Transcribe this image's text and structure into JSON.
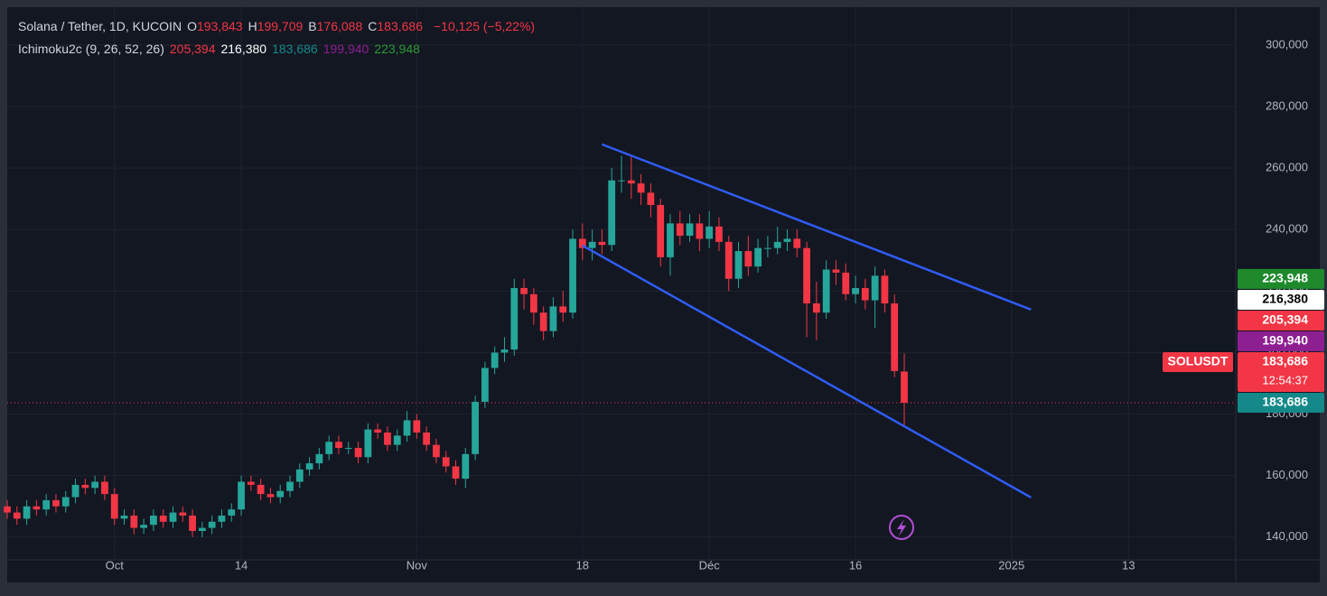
{
  "chart_data": {
    "type": "candlestick",
    "header": {
      "title": "Solana / Tether, 1D, KUCOIN",
      "ohlc": [
        {
          "key": "O",
          "value": "193,843"
        },
        {
          "key": "H",
          "value": "199,709"
        },
        {
          "key": "B",
          "value": "176,088"
        },
        {
          "key": "C",
          "value": "183,686"
        }
      ],
      "change": "−10,125 (−5,22%)",
      "indicator": "Ichimoku2c (9, 26, 52, 26)",
      "indicator_values": [
        {
          "text": "205,394",
          "color": "#f23645"
        },
        {
          "text": "216,380",
          "color": "#ffffff"
        },
        {
          "text": "183,686",
          "color": "#15898a"
        },
        {
          "text": "199,940",
          "color": "#8e1f91"
        },
        {
          "text": "223,948",
          "color": "#2b9a33"
        }
      ]
    },
    "up_color": "#26a69a",
    "down_color": "#f23645",
    "x": [
      "2024-09-20",
      "2024-09-21",
      "2024-09-22",
      "2024-09-23",
      "2024-09-24",
      "2024-09-25",
      "2024-09-26",
      "2024-09-27",
      "2024-09-28",
      "2024-09-29",
      "2024-09-30",
      "2024-10-01",
      "2024-10-02",
      "2024-10-03",
      "2024-10-04",
      "2024-10-05",
      "2024-10-06",
      "2024-10-07",
      "2024-10-08",
      "2024-10-09",
      "2024-10-10",
      "2024-10-11",
      "2024-10-12",
      "2024-10-13",
      "2024-10-14",
      "2024-10-15",
      "2024-10-16",
      "2024-10-17",
      "2024-10-18",
      "2024-10-19",
      "2024-10-20",
      "2024-10-21",
      "2024-10-22",
      "2024-10-23",
      "2024-10-24",
      "2024-10-25",
      "2024-10-26",
      "2024-10-27",
      "2024-10-28",
      "2024-10-29",
      "2024-10-30",
      "2024-10-31",
      "2024-11-01",
      "2024-11-02",
      "2024-11-03",
      "2024-11-04",
      "2024-11-05",
      "2024-11-06",
      "2024-11-07",
      "2024-11-08",
      "2024-11-09",
      "2024-11-10",
      "2024-11-11",
      "2024-11-12",
      "2024-11-13",
      "2024-11-14",
      "2024-11-15",
      "2024-11-16",
      "2024-11-17",
      "2024-11-18",
      "2024-11-19",
      "2024-11-20",
      "2024-11-21",
      "2024-11-22",
      "2024-11-23",
      "2024-11-24",
      "2024-11-25",
      "2024-11-26",
      "2024-11-27",
      "2024-11-28",
      "2024-11-29",
      "2024-11-30",
      "2024-12-01",
      "2024-12-02",
      "2024-12-03",
      "2024-12-04",
      "2024-12-05",
      "2024-12-06",
      "2024-12-07",
      "2024-12-08",
      "2024-12-09",
      "2024-12-10",
      "2024-12-11",
      "2024-12-12",
      "2024-12-13",
      "2024-12-14",
      "2024-12-15",
      "2024-12-16",
      "2024-12-17",
      "2024-12-18",
      "2024-12-19",
      "2024-12-20",
      "2024-12-21"
    ],
    "series": [
      {
        "name": "SOLUSDT",
        "open": [
          150000,
          148000,
          146000,
          150000,
          149000,
          152000,
          150000,
          153000,
          157000,
          156000,
          158000,
          154000,
          146000,
          147000,
          143000,
          144000,
          147000,
          145000,
          148000,
          147000,
          142000,
          143000,
          145000,
          147000,
          149000,
          158000,
          157000,
          154000,
          153000,
          155000,
          158000,
          162000,
          164000,
          167000,
          171000,
          169000,
          169000,
          166000,
          175000,
          174000,
          170000,
          173000,
          178000,
          174000,
          170000,
          166000,
          163000,
          159000,
          167000,
          184000,
          195000,
          200000,
          201000,
          221000,
          219000,
          213000,
          207000,
          215000,
          213000,
          237000,
          234000,
          236000,
          235000,
          256000,
          256000,
          255000,
          252000,
          248000,
          231000,
          242000,
          238000,
          242000,
          237000,
          241000,
          236000,
          224000,
          233000,
          228000,
          234000,
          234000,
          236000,
          237000,
          234000,
          216000,
          213000,
          227000,
          226000,
          219000,
          221000,
          217000,
          225000,
          216000,
          193843
        ],
        "high": [
          152000,
          150000,
          152000,
          152000,
          154000,
          154000,
          155000,
          159000,
          159000,
          160000,
          160000,
          156000,
          149000,
          149000,
          146000,
          149000,
          149000,
          150000,
          150000,
          149000,
          145000,
          147000,
          149000,
          151000,
          160000,
          160000,
          159000,
          156000,
          157000,
          160000,
          164000,
          166000,
          169000,
          173000,
          173000,
          171000,
          171000,
          177000,
          177000,
          176000,
          175000,
          181000,
          180000,
          176000,
          172000,
          168000,
          165000,
          169000,
          186000,
          197000,
          202000,
          205000,
          224000,
          224000,
          221000,
          215000,
          218000,
          220000,
          240000,
          242000,
          240000,
          240000,
          260000,
          264000,
          264000,
          258000,
          255000,
          250000,
          245000,
          246000,
          245000,
          245000,
          246000,
          244000,
          238000,
          236000,
          238000,
          237000,
          238000,
          241000,
          240000,
          240000,
          236000,
          223000,
          230000,
          230000,
          229000,
          225000,
          224000,
          228000,
          227000,
          219000,
          199709
        ],
        "low": [
          146000,
          144000,
          144000,
          147000,
          147000,
          148000,
          148000,
          151000,
          154000,
          154000,
          152000,
          144000,
          144000,
          141000,
          141000,
          142000,
          143000,
          143000,
          145000,
          140000,
          140000,
          141000,
          143000,
          145000,
          147000,
          155000,
          152000,
          151000,
          151000,
          153000,
          156000,
          160000,
          162000,
          165000,
          167000,
          167000,
          164000,
          164000,
          172000,
          168000,
          168000,
          171000,
          172000,
          168000,
          164000,
          161000,
          157000,
          156000,
          165000,
          182000,
          193000,
          197000,
          199000,
          214000,
          209000,
          204000,
          205000,
          210000,
          211000,
          230000,
          230000,
          232000,
          233000,
          252000,
          250000,
          248000,
          244000,
          228000,
          225000,
          235000,
          236000,
          233000,
          234000,
          233000,
          220000,
          221000,
          225000,
          226000,
          231000,
          232000,
          233000,
          231000,
          205000,
          204000,
          211000,
          222000,
          217000,
          216000,
          214000,
          208000,
          213000,
          192000,
          176088
        ],
        "close": [
          148000,
          146000,
          150000,
          149000,
          152000,
          150000,
          153000,
          157000,
          156000,
          158000,
          154000,
          146000,
          147000,
          143000,
          144000,
          147000,
          145000,
          148000,
          147000,
          142000,
          143000,
          145000,
          147000,
          149000,
          158000,
          157000,
          154000,
          153000,
          155000,
          158000,
          162000,
          164000,
          167000,
          171000,
          169000,
          169000,
          166000,
          175000,
          174000,
          170000,
          173000,
          178000,
          174000,
          170000,
          166000,
          163000,
          159000,
          167000,
          184000,
          195000,
          200000,
          201000,
          221000,
          219000,
          213000,
          207000,
          215000,
          213000,
          237000,
          234000,
          236000,
          235000,
          256000,
          256000,
          255000,
          252000,
          248000,
          231000,
          242000,
          238000,
          242000,
          237000,
          241000,
          236000,
          224000,
          233000,
          228000,
          234000,
          234000,
          236000,
          237000,
          234000,
          216000,
          213000,
          227000,
          226000,
          219000,
          221000,
          217000,
          225000,
          216000,
          194000,
          183686
        ]
      }
    ],
    "trend_lines": [
      {
        "color": "#2f5cf5",
        "x": [
          "2024-11-20",
          "2025-01-03"
        ],
        "y": [
          267700,
          214000
        ]
      },
      {
        "color": "#2f5cf5",
        "x": [
          "2024-11-18",
          "2025-01-03"
        ],
        "y": [
          234800,
          152900
        ]
      }
    ],
    "xlim": [
      "2024-09-20",
      "2025-01-24"
    ],
    "xticks": [
      {
        "value": "2024-10-01",
        "label": "Oct"
      },
      {
        "value": "2024-10-14",
        "label": "14"
      },
      {
        "value": "2024-11-01",
        "label": "Nov"
      },
      {
        "value": "2024-11-18",
        "label": "18"
      },
      {
        "value": "2024-12-01",
        "label": "Déc"
      },
      {
        "value": "2024-12-16",
        "label": "16"
      },
      {
        "value": "2025-01-01",
        "label": "2025"
      },
      {
        "value": "2025-01-13",
        "label": "13"
      }
    ],
    "ylim": [
      132600,
      312300
    ],
    "yticks": [
      {
        "value": 140000,
        "label": "140,000"
      },
      {
        "value": 160000,
        "label": "160,000"
      },
      {
        "value": 180000,
        "label": "180,000"
      },
      {
        "value": 200000,
        "label": "200,000"
      },
      {
        "value": 220000,
        "label": "220,000"
      },
      {
        "value": 240000,
        "label": "240,000"
      },
      {
        "value": 260000,
        "label": "260,000"
      },
      {
        "value": 280000,
        "label": "280,000"
      },
      {
        "value": 300000,
        "label": "300,000"
      }
    ],
    "grid": true,
    "price_line": {
      "value": 183686,
      "color": "#f23645"
    },
    "price_labels": [
      {
        "value": 223948,
        "label": "223,948",
        "color": "#1e8a2c",
        "text_color": "#ffffff"
      },
      {
        "value": 216380,
        "label": "216,380",
        "color": "#ffffff",
        "text_color": "#000000"
      },
      {
        "value": 205394,
        "label": "205,394",
        "color": "#f23645",
        "text_color": "#ffffff"
      },
      {
        "value": 199940,
        "label": "199,940",
        "color": "#8e1f91",
        "text_color": "#ffffff"
      },
      {
        "value": 183686,
        "label": "183,686",
        "color": "#f23645",
        "text_color": "#ffffff",
        "countdown": "12:54:37",
        "symbol": "SOLUSDT"
      },
      {
        "value": 183686,
        "label": "183,686",
        "color": "#15898a",
        "text_color": "#ffffff"
      }
    ]
  }
}
